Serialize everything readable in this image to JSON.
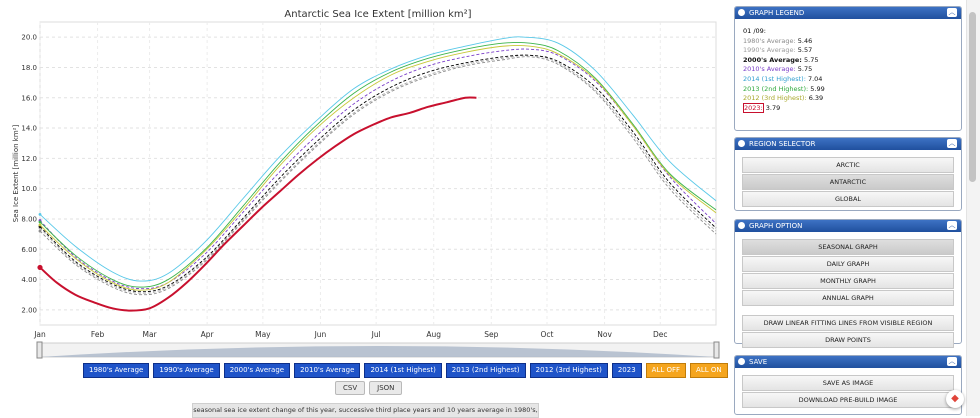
{
  "chart_data": {
    "type": "line",
    "title": "Antarctic Sea Ice Extent [million km²]",
    "ylabel": "Sea Ice Extent [million km²]",
    "xlabel": "",
    "x_unit": "day-of-year",
    "ylim": [
      1,
      21
    ],
    "yticks": [
      "2.00",
      "4.00",
      "6.00",
      "8.00",
      "10.0",
      "12.0",
      "14.0",
      "16.0",
      "18.0",
      "20.0"
    ],
    "ytick_values": [
      2,
      4,
      6,
      8,
      10,
      12,
      14,
      16,
      18,
      20
    ],
    "months": [
      "Jan",
      "Feb",
      "Mar",
      "Apr",
      "May",
      "Jun",
      "Jul",
      "Aug",
      "Sep",
      "Oct",
      "Nov",
      "Dec"
    ],
    "grid": true,
    "series": [
      {
        "name": "1980's Average",
        "color": "#8c8c8c",
        "dash": true,
        "points": [
          [
            1,
            7.2
          ],
          [
            20,
            5.0
          ],
          [
            40,
            3.5
          ],
          [
            55,
            3.0
          ],
          [
            70,
            3.4
          ],
          [
            90,
            5.2
          ],
          [
            110,
            7.8
          ],
          [
            130,
            10.4
          ],
          [
            150,
            12.8
          ],
          [
            170,
            14.9
          ],
          [
            190,
            16.4
          ],
          [
            210,
            17.4
          ],
          [
            230,
            18.1
          ],
          [
            250,
            18.5
          ],
          [
            265,
            18.7
          ],
          [
            280,
            18.2
          ],
          [
            300,
            16.4
          ],
          [
            320,
            13.4
          ],
          [
            340,
            10.0
          ],
          [
            365,
            7.0
          ]
        ]
      },
      {
        "name": "1990's Average",
        "color": "#aaaaaa",
        "dash": true,
        "points": [
          [
            1,
            7.4
          ],
          [
            20,
            5.1
          ],
          [
            40,
            3.6
          ],
          [
            55,
            3.1
          ],
          [
            70,
            3.5
          ],
          [
            90,
            5.3
          ],
          [
            110,
            7.9
          ],
          [
            130,
            10.5
          ],
          [
            150,
            12.9
          ],
          [
            170,
            15.0
          ],
          [
            190,
            16.5
          ],
          [
            210,
            17.5
          ],
          [
            230,
            18.2
          ],
          [
            250,
            18.6
          ],
          [
            265,
            18.8
          ],
          [
            280,
            18.3
          ],
          [
            300,
            16.5
          ],
          [
            320,
            13.6
          ],
          [
            340,
            10.2
          ],
          [
            365,
            7.2
          ]
        ]
      },
      {
        "name": "2000's Average",
        "color": "#000000",
        "dash": true,
        "points": [
          [
            1,
            7.5
          ],
          [
            20,
            5.2
          ],
          [
            40,
            3.7
          ],
          [
            55,
            3.2
          ],
          [
            70,
            3.6
          ],
          [
            90,
            5.4
          ],
          [
            110,
            8.0
          ],
          [
            130,
            10.7
          ],
          [
            150,
            13.1
          ],
          [
            170,
            15.2
          ],
          [
            190,
            16.7
          ],
          [
            210,
            17.7
          ],
          [
            230,
            18.3
          ],
          [
            250,
            18.7
          ],
          [
            265,
            18.8
          ],
          [
            280,
            18.4
          ],
          [
            300,
            16.7
          ],
          [
            320,
            13.8
          ],
          [
            340,
            10.4
          ],
          [
            365,
            7.4
          ]
        ]
      },
      {
        "name": "2010's Average",
        "color": "#7a3ec8",
        "dash": true,
        "points": [
          [
            1,
            7.9
          ],
          [
            20,
            5.5
          ],
          [
            40,
            3.9
          ],
          [
            55,
            3.4
          ],
          [
            70,
            3.8
          ],
          [
            90,
            5.7
          ],
          [
            110,
            8.4
          ],
          [
            130,
            11.1
          ],
          [
            150,
            13.5
          ],
          [
            170,
            15.6
          ],
          [
            190,
            17.1
          ],
          [
            210,
            18.1
          ],
          [
            230,
            18.7
          ],
          [
            250,
            19.1
          ],
          [
            265,
            19.2
          ],
          [
            280,
            18.8
          ],
          [
            300,
            17.1
          ],
          [
            320,
            14.2
          ],
          [
            340,
            10.8
          ],
          [
            365,
            7.7
          ]
        ]
      },
      {
        "name": "2014 (1st Highest)",
        "color": "#58c8e8",
        "dash": false,
        "points": [
          [
            1,
            8.3
          ],
          [
            20,
            6.2
          ],
          [
            40,
            4.5
          ],
          [
            55,
            3.9
          ],
          [
            70,
            4.4
          ],
          [
            90,
            6.5
          ],
          [
            110,
            9.3
          ],
          [
            130,
            12.1
          ],
          [
            150,
            14.5
          ],
          [
            170,
            16.6
          ],
          [
            190,
            17.9
          ],
          [
            210,
            18.8
          ],
          [
            230,
            19.4
          ],
          [
            250,
            19.9
          ],
          [
            262,
            20.0
          ],
          [
            280,
            19.6
          ],
          [
            300,
            17.8
          ],
          [
            320,
            14.9
          ],
          [
            340,
            11.8
          ],
          [
            365,
            9.2
          ]
        ]
      },
      {
        "name": "2013 (2nd Highest)",
        "color": "#3cb44b",
        "dash": false,
        "points": [
          [
            1,
            7.8
          ],
          [
            20,
            5.6
          ],
          [
            40,
            4.0
          ],
          [
            55,
            3.5
          ],
          [
            70,
            4.0
          ],
          [
            90,
            6.0
          ],
          [
            110,
            8.8
          ],
          [
            130,
            11.7
          ],
          [
            150,
            14.2
          ],
          [
            170,
            16.3
          ],
          [
            190,
            17.7
          ],
          [
            210,
            18.6
          ],
          [
            230,
            19.2
          ],
          [
            250,
            19.6
          ],
          [
            265,
            19.6
          ],
          [
            280,
            19.1
          ],
          [
            300,
            17.3
          ],
          [
            320,
            14.3
          ],
          [
            340,
            11.0
          ],
          [
            365,
            8.6
          ]
        ]
      },
      {
        "name": "2012 (3rd Highest)",
        "color": "#c8c83a",
        "dash": false,
        "points": [
          [
            1,
            7.6
          ],
          [
            20,
            5.4
          ],
          [
            40,
            3.8
          ],
          [
            55,
            3.3
          ],
          [
            70,
            3.8
          ],
          [
            90,
            5.9
          ],
          [
            110,
            8.6
          ],
          [
            130,
            11.5
          ],
          [
            150,
            14.0
          ],
          [
            170,
            16.0
          ],
          [
            190,
            17.5
          ],
          [
            210,
            18.4
          ],
          [
            230,
            19.0
          ],
          [
            250,
            19.4
          ],
          [
            265,
            19.4
          ],
          [
            280,
            18.9
          ],
          [
            300,
            17.2
          ],
          [
            320,
            14.2
          ],
          [
            340,
            10.9
          ],
          [
            365,
            8.4
          ]
        ]
      },
      {
        "name": "2023",
        "color": "#c8102e",
        "dash": false,
        "thick": true,
        "points": [
          [
            1,
            4.8
          ],
          [
            10,
            3.8
          ],
          [
            20,
            3.0
          ],
          [
            30,
            2.5
          ],
          [
            40,
            2.1
          ],
          [
            50,
            1.95
          ],
          [
            60,
            2.1
          ],
          [
            70,
            2.8
          ],
          [
            80,
            3.8
          ],
          [
            90,
            5.0
          ],
          [
            100,
            6.3
          ],
          [
            110,
            7.5
          ],
          [
            120,
            8.7
          ],
          [
            130,
            9.8
          ],
          [
            140,
            10.9
          ],
          [
            150,
            11.9
          ],
          [
            160,
            12.8
          ],
          [
            170,
            13.6
          ],
          [
            180,
            14.2
          ],
          [
            190,
            14.7
          ],
          [
            200,
            15.0
          ],
          [
            210,
            15.4
          ],
          [
            220,
            15.7
          ],
          [
            230,
            16.0
          ],
          [
            236,
            16.0
          ]
        ]
      }
    ]
  },
  "series_buttons": [
    "1980's Average",
    "1990's Average",
    "2000's Average",
    "2010's Average",
    "2014 (1st Highest)",
    "2013 (2nd Highest)",
    "2012 (3rd Highest)",
    "2023",
    "ALL OFF",
    "ALL ON"
  ],
  "export_buttons": [
    "CSV",
    "JSON"
  ],
  "caption": "seasonal sea ice extent change of this year, successive third place years and 10 years average in 1980's,",
  "legend": {
    "title": "GRAPH LEGEND",
    "date": "01 /09:",
    "items": [
      {
        "label": "1980's Average:",
        "value": "5.46",
        "color": "#8c8c8c"
      },
      {
        "label": "1990's Average:",
        "value": "5.57",
        "color": "#9c9c9c"
      },
      {
        "label": "2000's Average:",
        "value": "5.75",
        "color": "#111111"
      },
      {
        "label": "2010's Average:",
        "value": "5.75",
        "color": "#7a3ec8"
      },
      {
        "label": "2014 (1st Highest):",
        "value": "7.04",
        "color": "#2f9fd0"
      },
      {
        "label": "2013 (2nd Highest):",
        "value": "5.99",
        "color": "#2ea83c"
      },
      {
        "label": "2012 (3rd Highest):",
        "value": "6.39",
        "color": "#a8a82a"
      },
      {
        "label": "2023:",
        "value": "3.79",
        "color": "#c8102e"
      }
    ]
  },
  "region_selector": {
    "title": "REGION SELECTOR",
    "items": [
      "ARCTIC",
      "ANTARCTIC",
      "GLOBAL"
    ],
    "active": "ANTARCTIC"
  },
  "graph_option": {
    "title": "GRAPH OPTION",
    "items": [
      "SEASONAL GRAPH",
      "DAILY GRAPH",
      "MONTHLY GRAPH",
      "ANNUAL GRAPH"
    ],
    "extra": [
      "DRAW LINEAR FITTING LINES FROM VISIBLE REGION",
      "DRAW POINTS"
    ],
    "active": "SEASONAL GRAPH"
  },
  "save": {
    "title": "SAVE",
    "items": [
      "SAVE AS IMAGE",
      "DOWNLOAD PRE-BUILD IMAGE"
    ]
  }
}
